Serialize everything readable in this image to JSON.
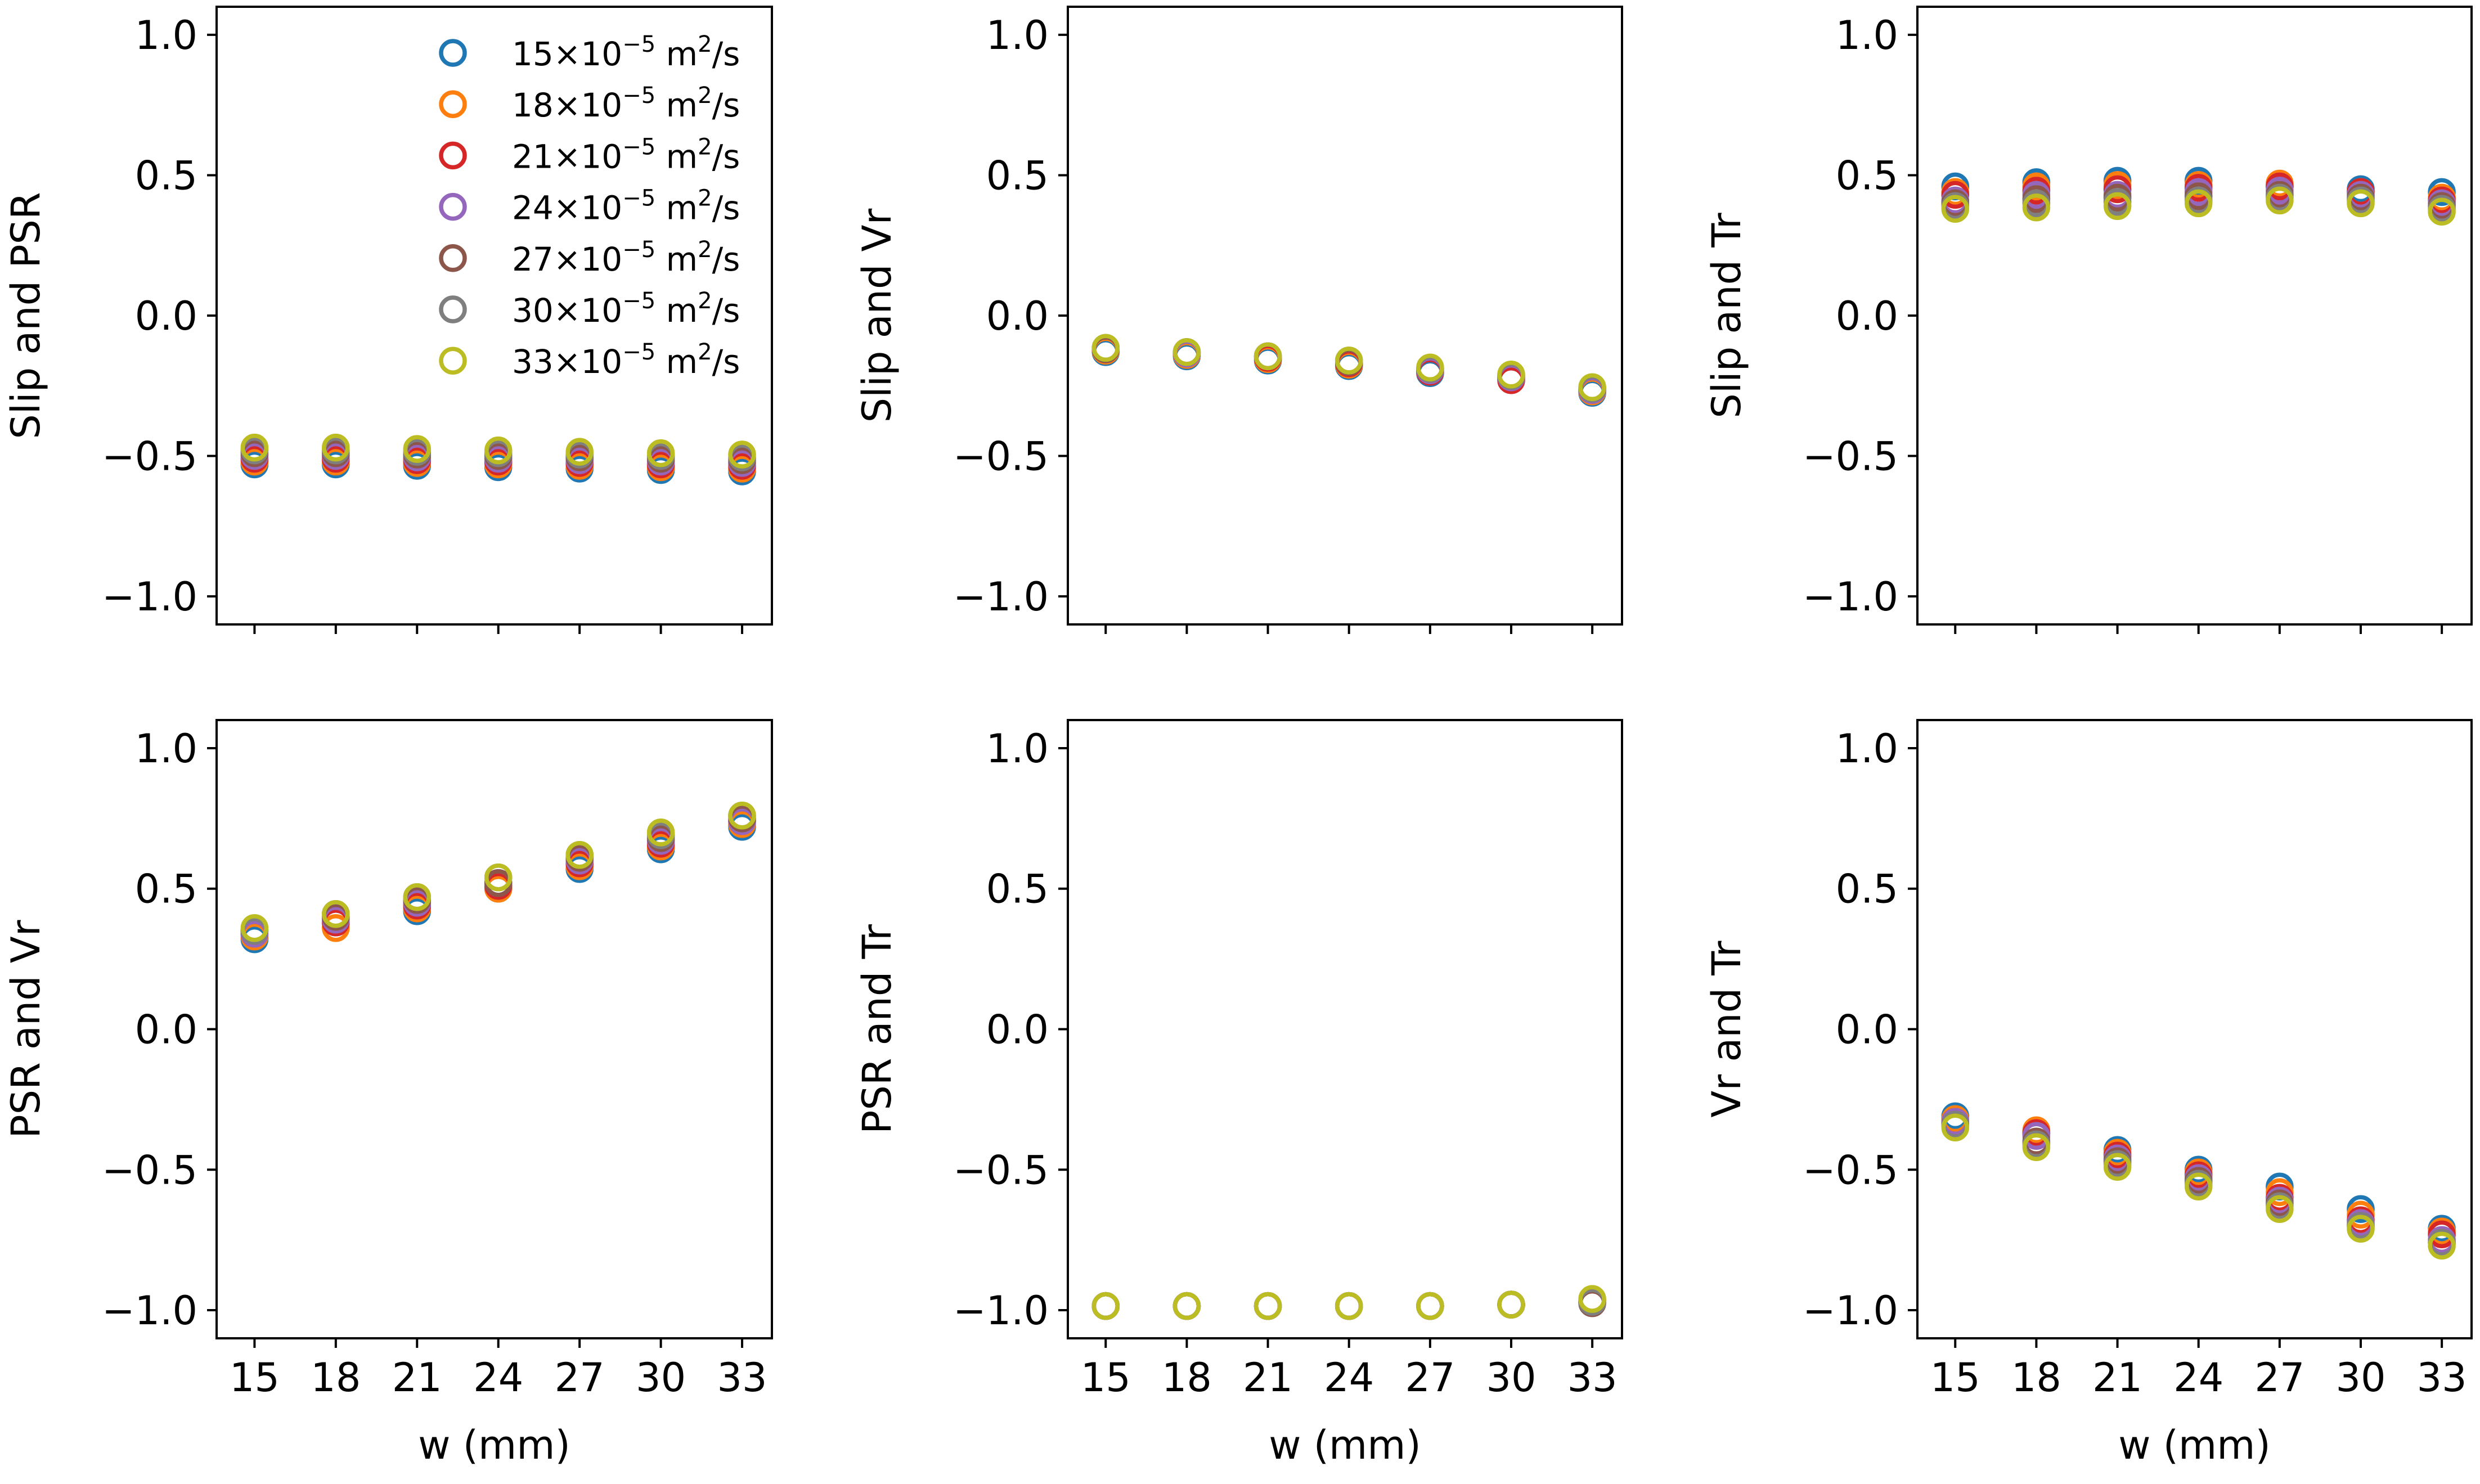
{
  "chart_data": {
    "type": "scatter",
    "layout": "2x3 grid of scatter panels, shared x-axis per column",
    "x": [
      15,
      18,
      21,
      24,
      27,
      30,
      33
    ],
    "xticklabels": [
      "15",
      "18",
      "21",
      "24",
      "27",
      "30",
      "33"
    ],
    "xlabel": "w (mm)",
    "ylim": [
      -1.1,
      1.1
    ],
    "yticks": [
      1.0,
      0.5,
      0.0,
      -0.5,
      -1.0
    ],
    "yticklabels": [
      "1.0",
      "0.5",
      "0.0",
      "−0.5",
      "−1.0"
    ],
    "marker": "hollow circle",
    "legend": {
      "placement": "top-right of first panel",
      "entries": [
        {
          "prefix": "15×10",
          "exp": "−5",
          "unit": " m",
          "unit_exp": "2",
          "suffix": "/s",
          "color": "#1f77b4"
        },
        {
          "prefix": "18×10",
          "exp": "−5",
          "unit": " m",
          "unit_exp": "2",
          "suffix": "/s",
          "color": "#ff7f0e"
        },
        {
          "prefix": "21×10",
          "exp": "−5",
          "unit": " m",
          "unit_exp": "2",
          "suffix": "/s",
          "color": "#d62728"
        },
        {
          "prefix": "24×10",
          "exp": "−5",
          "unit": " m",
          "unit_exp": "2",
          "suffix": "/s",
          "color": "#9467bd"
        },
        {
          "prefix": "27×10",
          "exp": "−5",
          "unit": " m",
          "unit_exp": "2",
          "suffix": "/s",
          "color": "#8c564b"
        },
        {
          "prefix": "30×10",
          "exp": "−5",
          "unit": " m",
          "unit_exp": "2",
          "suffix": "/s",
          "color": "#7f7f7f"
        },
        {
          "prefix": "33×10",
          "exp": "−5",
          "unit": " m",
          "unit_exp": "2",
          "suffix": "/s",
          "color": "#bcbd22"
        }
      ]
    },
    "panels": [
      {
        "ylabel": "Slip and PSR",
        "series": [
          {
            "name": "15",
            "values": [
              -0.53,
              -0.53,
              -0.535,
              -0.54,
              -0.545,
              -0.55,
              -0.555
            ]
          },
          {
            "name": "18",
            "values": [
              -0.52,
              -0.52,
              -0.525,
              -0.53,
              -0.535,
              -0.54,
              -0.545
            ]
          },
          {
            "name": "21",
            "values": [
              -0.51,
              -0.51,
              -0.515,
              -0.52,
              -0.525,
              -0.53,
              -0.535
            ]
          },
          {
            "name": "24",
            "values": [
              -0.5,
              -0.5,
              -0.505,
              -0.51,
              -0.515,
              -0.52,
              -0.525
            ]
          },
          {
            "name": "27",
            "values": [
              -0.49,
              -0.49,
              -0.495,
              -0.5,
              -0.505,
              -0.51,
              -0.515
            ]
          },
          {
            "name": "30",
            "values": [
              -0.48,
              -0.48,
              -0.485,
              -0.49,
              -0.495,
              -0.5,
              -0.505
            ]
          },
          {
            "name": "33",
            "values": [
              -0.47,
              -0.47,
              -0.475,
              -0.48,
              -0.485,
              -0.49,
              -0.495
            ]
          }
        ]
      },
      {
        "ylabel": "Slip and Vr",
        "series": [
          {
            "name": "15",
            "values": [
              -0.13,
              -0.145,
              -0.16,
              -0.18,
              -0.205,
              -0.225,
              -0.275
            ]
          },
          {
            "name": "18",
            "values": [
              -0.125,
              -0.14,
              -0.155,
              -0.175,
              -0.2,
              -0.225,
              -0.27
            ]
          },
          {
            "name": "21",
            "values": [
              -0.12,
              -0.135,
              -0.15,
              -0.17,
              -0.2,
              -0.23,
              -0.265
            ]
          },
          {
            "name": "24",
            "values": [
              -0.12,
              -0.135,
              -0.145,
              -0.165,
              -0.195,
              -0.22,
              -0.265
            ]
          },
          {
            "name": "27",
            "values": [
              -0.12,
              -0.13,
              -0.145,
              -0.165,
              -0.19,
              -0.215,
              -0.26
            ]
          },
          {
            "name": "30",
            "values": [
              -0.115,
              -0.13,
              -0.145,
              -0.16,
              -0.19,
              -0.215,
              -0.26
            ]
          },
          {
            "name": "33",
            "values": [
              -0.115,
              -0.13,
              -0.145,
              -0.16,
              -0.185,
              -0.21,
              -0.255
            ]
          }
        ]
      },
      {
        "ylabel": "Slip and Tr",
        "series": [
          {
            "name": "15",
            "values": [
              0.46,
              0.475,
              0.48,
              0.48,
              0.46,
              0.45,
              0.44
            ]
          },
          {
            "name": "18",
            "values": [
              0.44,
              0.46,
              0.465,
              0.465,
              0.47,
              0.44,
              0.42
            ]
          },
          {
            "name": "21",
            "values": [
              0.43,
              0.445,
              0.45,
              0.455,
              0.46,
              0.44,
              0.41
            ]
          },
          {
            "name": "24",
            "values": [
              0.41,
              0.43,
              0.43,
              0.44,
              0.445,
              0.43,
              0.4
            ]
          },
          {
            "name": "27",
            "values": [
              0.4,
              0.415,
              0.42,
              0.425,
              0.43,
              0.42,
              0.39
            ]
          },
          {
            "name": "30",
            "values": [
              0.39,
              0.4,
              0.405,
              0.41,
              0.42,
              0.41,
              0.38
            ]
          },
          {
            "name": "33",
            "values": [
              0.38,
              0.385,
              0.39,
              0.4,
              0.41,
              0.4,
              0.37
            ]
          }
        ]
      },
      {
        "ylabel": "PSR and Vr",
        "series": [
          {
            "name": "15",
            "values": [
              0.32,
              0.38,
              0.42,
              0.5,
              0.57,
              0.64,
              0.72
            ]
          },
          {
            "name": "18",
            "values": [
              0.33,
              0.36,
              0.43,
              0.5,
              0.58,
              0.65,
              0.73
            ]
          },
          {
            "name": "21",
            "values": [
              0.34,
              0.38,
              0.44,
              0.51,
              0.59,
              0.66,
              0.74
            ]
          },
          {
            "name": "24",
            "values": [
              0.34,
              0.39,
              0.45,
              0.52,
              0.6,
              0.67,
              0.74
            ]
          },
          {
            "name": "27",
            "values": [
              0.35,
              0.4,
              0.46,
              0.52,
              0.61,
              0.68,
              0.75
            ]
          },
          {
            "name": "30",
            "values": [
              0.35,
              0.41,
              0.47,
              0.54,
              0.62,
              0.69,
              0.76
            ]
          },
          {
            "name": "33",
            "values": [
              0.36,
              0.41,
              0.47,
              0.54,
              0.62,
              0.7,
              0.76
            ]
          }
        ]
      },
      {
        "ylabel": "PSR and Tr",
        "series": [
          {
            "name": "15",
            "values": [
              -0.985,
              -0.985,
              -0.985,
              -0.985,
              -0.985,
              -0.98,
              -0.97
            ]
          },
          {
            "name": "18",
            "values": [
              -0.985,
              -0.985,
              -0.985,
              -0.985,
              -0.985,
              -0.98,
              -0.965
            ]
          },
          {
            "name": "21",
            "values": [
              -0.985,
              -0.985,
              -0.985,
              -0.985,
              -0.985,
              -0.98,
              -0.97
            ]
          },
          {
            "name": "24",
            "values": [
              -0.985,
              -0.985,
              -0.985,
              -0.985,
              -0.985,
              -0.98,
              -0.97
            ]
          },
          {
            "name": "27",
            "values": [
              -0.985,
              -0.985,
              -0.985,
              -0.985,
              -0.985,
              -0.98,
              -0.975
            ]
          },
          {
            "name": "30",
            "values": [
              -0.985,
              -0.985,
              -0.985,
              -0.985,
              -0.985,
              -0.98,
              -0.97
            ]
          },
          {
            "name": "33",
            "values": [
              -0.985,
              -0.985,
              -0.985,
              -0.985,
              -0.985,
              -0.98,
              -0.96
            ]
          }
        ]
      },
      {
        "ylabel": "Vr and Tr",
        "series": [
          {
            "name": "15",
            "values": [
              -0.31,
              -0.37,
              -0.43,
              -0.5,
              -0.56,
              -0.64,
              -0.71
            ]
          },
          {
            "name": "18",
            "values": [
              -0.32,
              -0.36,
              -0.44,
              -0.51,
              -0.58,
              -0.66,
              -0.72
            ]
          },
          {
            "name": "21",
            "values": [
              -0.33,
              -0.37,
              -0.45,
              -0.52,
              -0.6,
              -0.68,
              -0.73
            ]
          },
          {
            "name": "24",
            "values": [
              -0.33,
              -0.38,
              -0.46,
              -0.53,
              -0.61,
              -0.69,
              -0.75
            ]
          },
          {
            "name": "27",
            "values": [
              -0.34,
              -0.4,
              -0.47,
              -0.54,
              -0.62,
              -0.7,
              -0.76
            ]
          },
          {
            "name": "30",
            "values": [
              -0.34,
              -0.41,
              -0.48,
              -0.55,
              -0.63,
              -0.7,
              -0.76
            ]
          },
          {
            "name": "33",
            "values": [
              -0.35,
              -0.42,
              -0.49,
              -0.56,
              -0.64,
              -0.71,
              -0.77
            ]
          }
        ]
      }
    ]
  }
}
